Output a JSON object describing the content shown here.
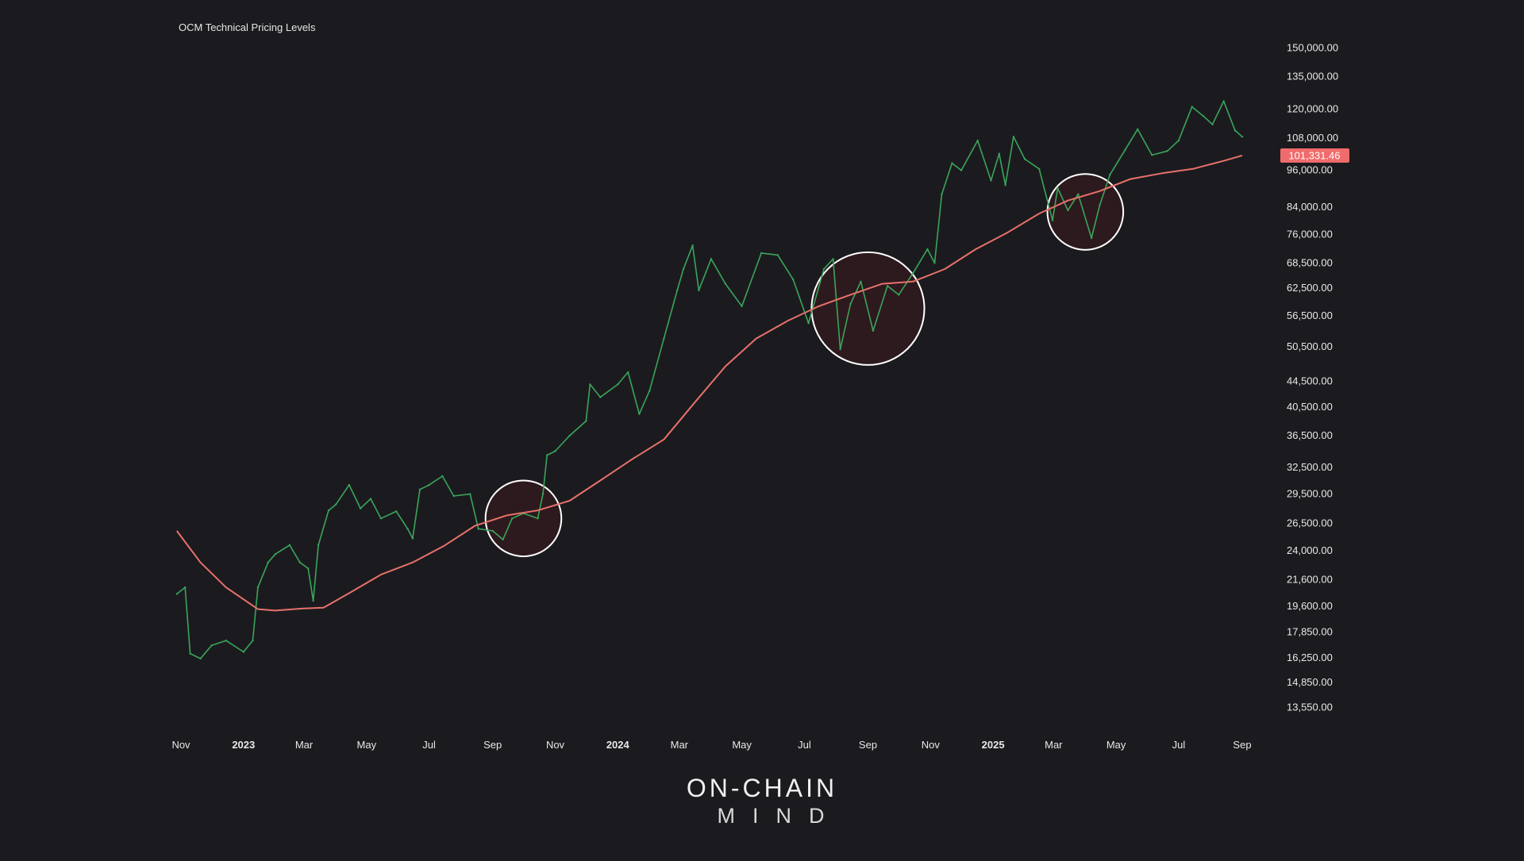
{
  "chart_data": {
    "type": "line",
    "title": "OCM Technical Pricing Levels",
    "y_scale": "log",
    "ylim": [
      13000,
      160000
    ],
    "y_ticks": [
      "150,000.00",
      "135,000.00",
      "120,000.00",
      "108,000.00",
      "96,000.00",
      "84,000.00",
      "76,000.00",
      "68,500.00",
      "62,500.00",
      "56,500.00",
      "50,500.00",
      "44,500.00",
      "40,500.00",
      "36,500.00",
      "32,500.00",
      "29,500.00",
      "26,500.00",
      "24,000.00",
      "21,600.00",
      "19,600.00",
      "17,850.00",
      "16,250.00",
      "14,850.00",
      "13,550.00"
    ],
    "x_ticks": [
      {
        "label": "Nov",
        "date": "2022-11-01",
        "bold": false
      },
      {
        "label": "2023",
        "date": "2023-01-01",
        "bold": true
      },
      {
        "label": "Mar",
        "date": "2023-03-01",
        "bold": false
      },
      {
        "label": "May",
        "date": "2023-05-01",
        "bold": false
      },
      {
        "label": "Jul",
        "date": "2023-07-01",
        "bold": false
      },
      {
        "label": "Sep",
        "date": "2023-09-01",
        "bold": false
      },
      {
        "label": "Nov",
        "date": "2023-11-01",
        "bold": false
      },
      {
        "label": "2024",
        "date": "2024-01-01",
        "bold": true
      },
      {
        "label": "Mar",
        "date": "2024-03-01",
        "bold": false
      },
      {
        "label": "May",
        "date": "2024-05-01",
        "bold": false
      },
      {
        "label": "Jul",
        "date": "2024-07-01",
        "bold": false
      },
      {
        "label": "Sep",
        "date": "2024-09-01",
        "bold": false
      },
      {
        "label": "Nov",
        "date": "2024-11-01",
        "bold": false
      },
      {
        "label": "2025",
        "date": "2025-01-01",
        "bold": true
      },
      {
        "label": "Mar",
        "date": "2025-03-01",
        "bold": false
      },
      {
        "label": "May",
        "date": "2025-05-01",
        "bold": false
      },
      {
        "label": "Jul",
        "date": "2025-07-01",
        "bold": false
      },
      {
        "label": "Sep",
        "date": "2025-09-01",
        "bold": false
      }
    ],
    "series": [
      {
        "kind": "price",
        "color": "#3aa55a",
        "points": [
          [
            "2022-10-28",
            20500
          ],
          [
            "2022-11-05",
            21000
          ],
          [
            "2022-11-10",
            16500
          ],
          [
            "2022-11-20",
            16200
          ],
          [
            "2022-12-01",
            17000
          ],
          [
            "2022-12-15",
            17300
          ],
          [
            "2023-01-01",
            16600
          ],
          [
            "2023-01-10",
            17300
          ],
          [
            "2023-01-15",
            21000
          ],
          [
            "2023-01-25",
            23000
          ],
          [
            "2023-02-01",
            23700
          ],
          [
            "2023-02-15",
            24500
          ],
          [
            "2023-02-25",
            23000
          ],
          [
            "2023-03-05",
            22500
          ],
          [
            "2023-03-10",
            20000
          ],
          [
            "2023-03-15",
            24500
          ],
          [
            "2023-03-25",
            27800
          ],
          [
            "2023-04-01",
            28400
          ],
          [
            "2023-04-14",
            30500
          ],
          [
            "2023-04-25",
            28000
          ],
          [
            "2023-05-05",
            29000
          ],
          [
            "2023-05-15",
            27000
          ],
          [
            "2023-05-30",
            27700
          ],
          [
            "2023-06-10",
            26000
          ],
          [
            "2023-06-15",
            25100
          ],
          [
            "2023-06-22",
            30000
          ],
          [
            "2023-07-01",
            30500
          ],
          [
            "2023-07-14",
            31500
          ],
          [
            "2023-07-25",
            29300
          ],
          [
            "2023-08-10",
            29500
          ],
          [
            "2023-08-18",
            26000
          ],
          [
            "2023-09-01",
            25800
          ],
          [
            "2023-09-11",
            25000
          ],
          [
            "2023-09-20",
            27000
          ],
          [
            "2023-10-01",
            27500
          ],
          [
            "2023-10-15",
            27000
          ],
          [
            "2023-10-20",
            29500
          ],
          [
            "2023-10-24",
            34000
          ],
          [
            "2023-11-01",
            34500
          ],
          [
            "2023-11-15",
            36500
          ],
          [
            "2023-12-01",
            38500
          ],
          [
            "2023-12-05",
            44000
          ],
          [
            "2023-12-15",
            42000
          ],
          [
            "2024-01-01",
            44000
          ],
          [
            "2024-01-11",
            46000
          ],
          [
            "2024-01-22",
            39500
          ],
          [
            "2024-02-01",
            43000
          ],
          [
            "2024-02-15",
            52000
          ],
          [
            "2024-02-28",
            62000
          ],
          [
            "2024-03-05",
            67000
          ],
          [
            "2024-03-14",
            73000
          ],
          [
            "2024-03-20",
            62000
          ],
          [
            "2024-04-01",
            69500
          ],
          [
            "2024-04-15",
            63500
          ],
          [
            "2024-05-01",
            58500
          ],
          [
            "2024-05-20",
            71000
          ],
          [
            "2024-06-05",
            70500
          ],
          [
            "2024-06-20",
            64500
          ],
          [
            "2024-07-05",
            55000
          ],
          [
            "2024-07-20",
            67000
          ],
          [
            "2024-07-29",
            69500
          ],
          [
            "2024-08-05",
            50000
          ],
          [
            "2024-08-15",
            59000
          ],
          [
            "2024-08-25",
            64000
          ],
          [
            "2024-09-06",
            53500
          ],
          [
            "2024-09-20",
            63000
          ],
          [
            "2024-10-01",
            61000
          ],
          [
            "2024-10-15",
            66000
          ],
          [
            "2024-10-29",
            72000
          ],
          [
            "2024-11-05",
            68500
          ],
          [
            "2024-11-12",
            88000
          ],
          [
            "2024-11-22",
            98500
          ],
          [
            "2024-12-01",
            96000
          ],
          [
            "2024-12-17",
            107000
          ],
          [
            "2024-12-30",
            92500
          ],
          [
            "2025-01-07",
            102000
          ],
          [
            "2025-01-13",
            91000
          ],
          [
            "2025-01-21",
            108500
          ],
          [
            "2025-02-01",
            100000
          ],
          [
            "2025-02-15",
            96500
          ],
          [
            "2025-02-28",
            80000
          ],
          [
            "2025-03-05",
            90000
          ],
          [
            "2025-03-15",
            83000
          ],
          [
            "2025-03-25",
            88000
          ],
          [
            "2025-04-07",
            75000
          ],
          [
            "2025-04-15",
            84500
          ],
          [
            "2025-04-25",
            94500
          ],
          [
            "2025-05-10",
            103500
          ],
          [
            "2025-05-22",
            111500
          ],
          [
            "2025-06-05",
            101500
          ],
          [
            "2025-06-20",
            103000
          ],
          [
            "2025-07-01",
            107000
          ],
          [
            "2025-07-14",
            121000
          ],
          [
            "2025-07-25",
            117000
          ],
          [
            "2025-08-03",
            113500
          ],
          [
            "2025-08-14",
            123500
          ],
          [
            "2025-08-25",
            111000
          ],
          [
            "2025-09-01",
            108500
          ]
        ]
      },
      {
        "kind": "moving_average",
        "color": "#e8716b",
        "points": [
          [
            "2022-10-28",
            25800
          ],
          [
            "2022-11-20",
            23000
          ],
          [
            "2022-12-15",
            21000
          ],
          [
            "2023-01-15",
            19400
          ],
          [
            "2023-02-01",
            19300
          ],
          [
            "2023-03-01",
            19450
          ],
          [
            "2023-03-20",
            19500
          ],
          [
            "2023-04-15",
            20600
          ],
          [
            "2023-05-15",
            22000
          ],
          [
            "2023-06-15",
            23000
          ],
          [
            "2023-07-15",
            24400
          ],
          [
            "2023-08-15",
            26300
          ],
          [
            "2023-09-15",
            27300
          ],
          [
            "2023-10-15",
            27800
          ],
          [
            "2023-11-15",
            28800
          ],
          [
            "2023-12-15",
            31000
          ],
          [
            "2024-01-15",
            33500
          ],
          [
            "2024-02-15",
            36000
          ],
          [
            "2024-03-15",
            41000
          ],
          [
            "2024-04-15",
            47000
          ],
          [
            "2024-05-15",
            52000
          ],
          [
            "2024-06-15",
            55500
          ],
          [
            "2024-07-15",
            58500
          ],
          [
            "2024-08-15",
            61000
          ],
          [
            "2024-09-15",
            63500
          ],
          [
            "2024-10-15",
            64000
          ],
          [
            "2024-11-15",
            67000
          ],
          [
            "2024-12-15",
            72000
          ],
          [
            "2025-01-15",
            76500
          ],
          [
            "2025-02-15",
            82000
          ],
          [
            "2025-03-15",
            86000
          ],
          [
            "2025-04-15",
            89000
          ],
          [
            "2025-05-15",
            93000
          ],
          [
            "2025-06-15",
            95000
          ],
          [
            "2025-07-15",
            96500
          ],
          [
            "2025-08-15",
            99500
          ],
          [
            "2025-09-01",
            101331.46
          ]
        ]
      }
    ],
    "last_value_label": "101,331.46",
    "highlights": [
      {
        "center_date": "2023-10-01",
        "center_value": 27000,
        "radius_days": 37
      },
      {
        "center_date": "2024-09-01",
        "center_value": 58000,
        "radius_days": 55
      },
      {
        "center_date": "2025-04-01",
        "center_value": 82500,
        "radius_days": 37
      }
    ],
    "colors": {
      "background": "#1b1b1f",
      "price": "#3aa55a",
      "average": "#e8716b",
      "label_bg": "#f06b6b",
      "circle": "#ffffff",
      "circle_fill": "#2d1a1e"
    },
    "grid": false
  },
  "brand": {
    "line1": "ON-CHAIN",
    "line2": "MIND"
  }
}
